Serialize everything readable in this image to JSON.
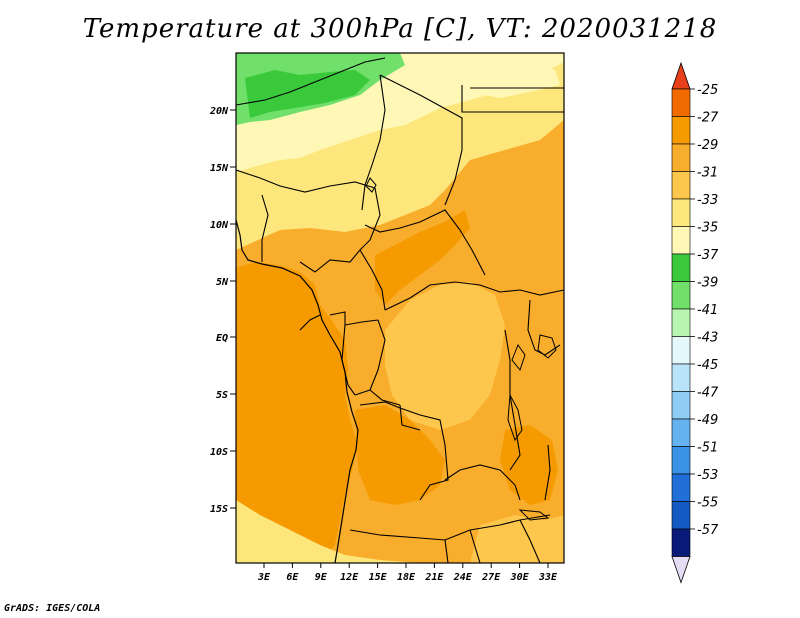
{
  "title": "Temperature at 300hPa [C], VT: 2020031218",
  "credit": "GrADS: IGES/COLA",
  "map": {
    "lat_ticks": [
      "20N",
      "15N",
      "10N",
      "5N",
      "EQ",
      "5S",
      "10S",
      "15S"
    ],
    "lon_ticks": [
      "3E",
      "6E",
      "9E",
      "12E",
      "15E",
      "18E",
      "21E",
      "24E",
      "27E",
      "30E",
      "33E"
    ]
  },
  "colorbar": {
    "labels": [
      "-25",
      "-27",
      "-29",
      "-31",
      "-33",
      "-35",
      "-37",
      "-39",
      "-41",
      "-43",
      "-45",
      "-47",
      "-49",
      "-51",
      "-53",
      "-55",
      "-57"
    ],
    "top_arrow_color": "#e8401a",
    "bottom_arrow_color": "#e4ddf5",
    "colors": [
      "#f06a00",
      "#f59a00",
      "#f9ad2c",
      "#fdc64d",
      "#fde77c",
      "#fef7b6",
      "#39c93b",
      "#70e06a",
      "#b8f5b0",
      "#e4f8fb",
      "#b8e3f8",
      "#8fcdf4",
      "#64b3ef",
      "#3c93e6",
      "#1f6fd7",
      "#135ac2",
      "#0a1a78"
    ]
  },
  "legend_colors": {
    "ocean_warm": "#f59a00",
    "land_mid": "#f9ad2c",
    "land_light": "#fdc64d",
    "north_pale": "#fde77c",
    "north_cream": "#fef7b6",
    "green": "#39c93b",
    "green_light": "#70e06a"
  }
}
